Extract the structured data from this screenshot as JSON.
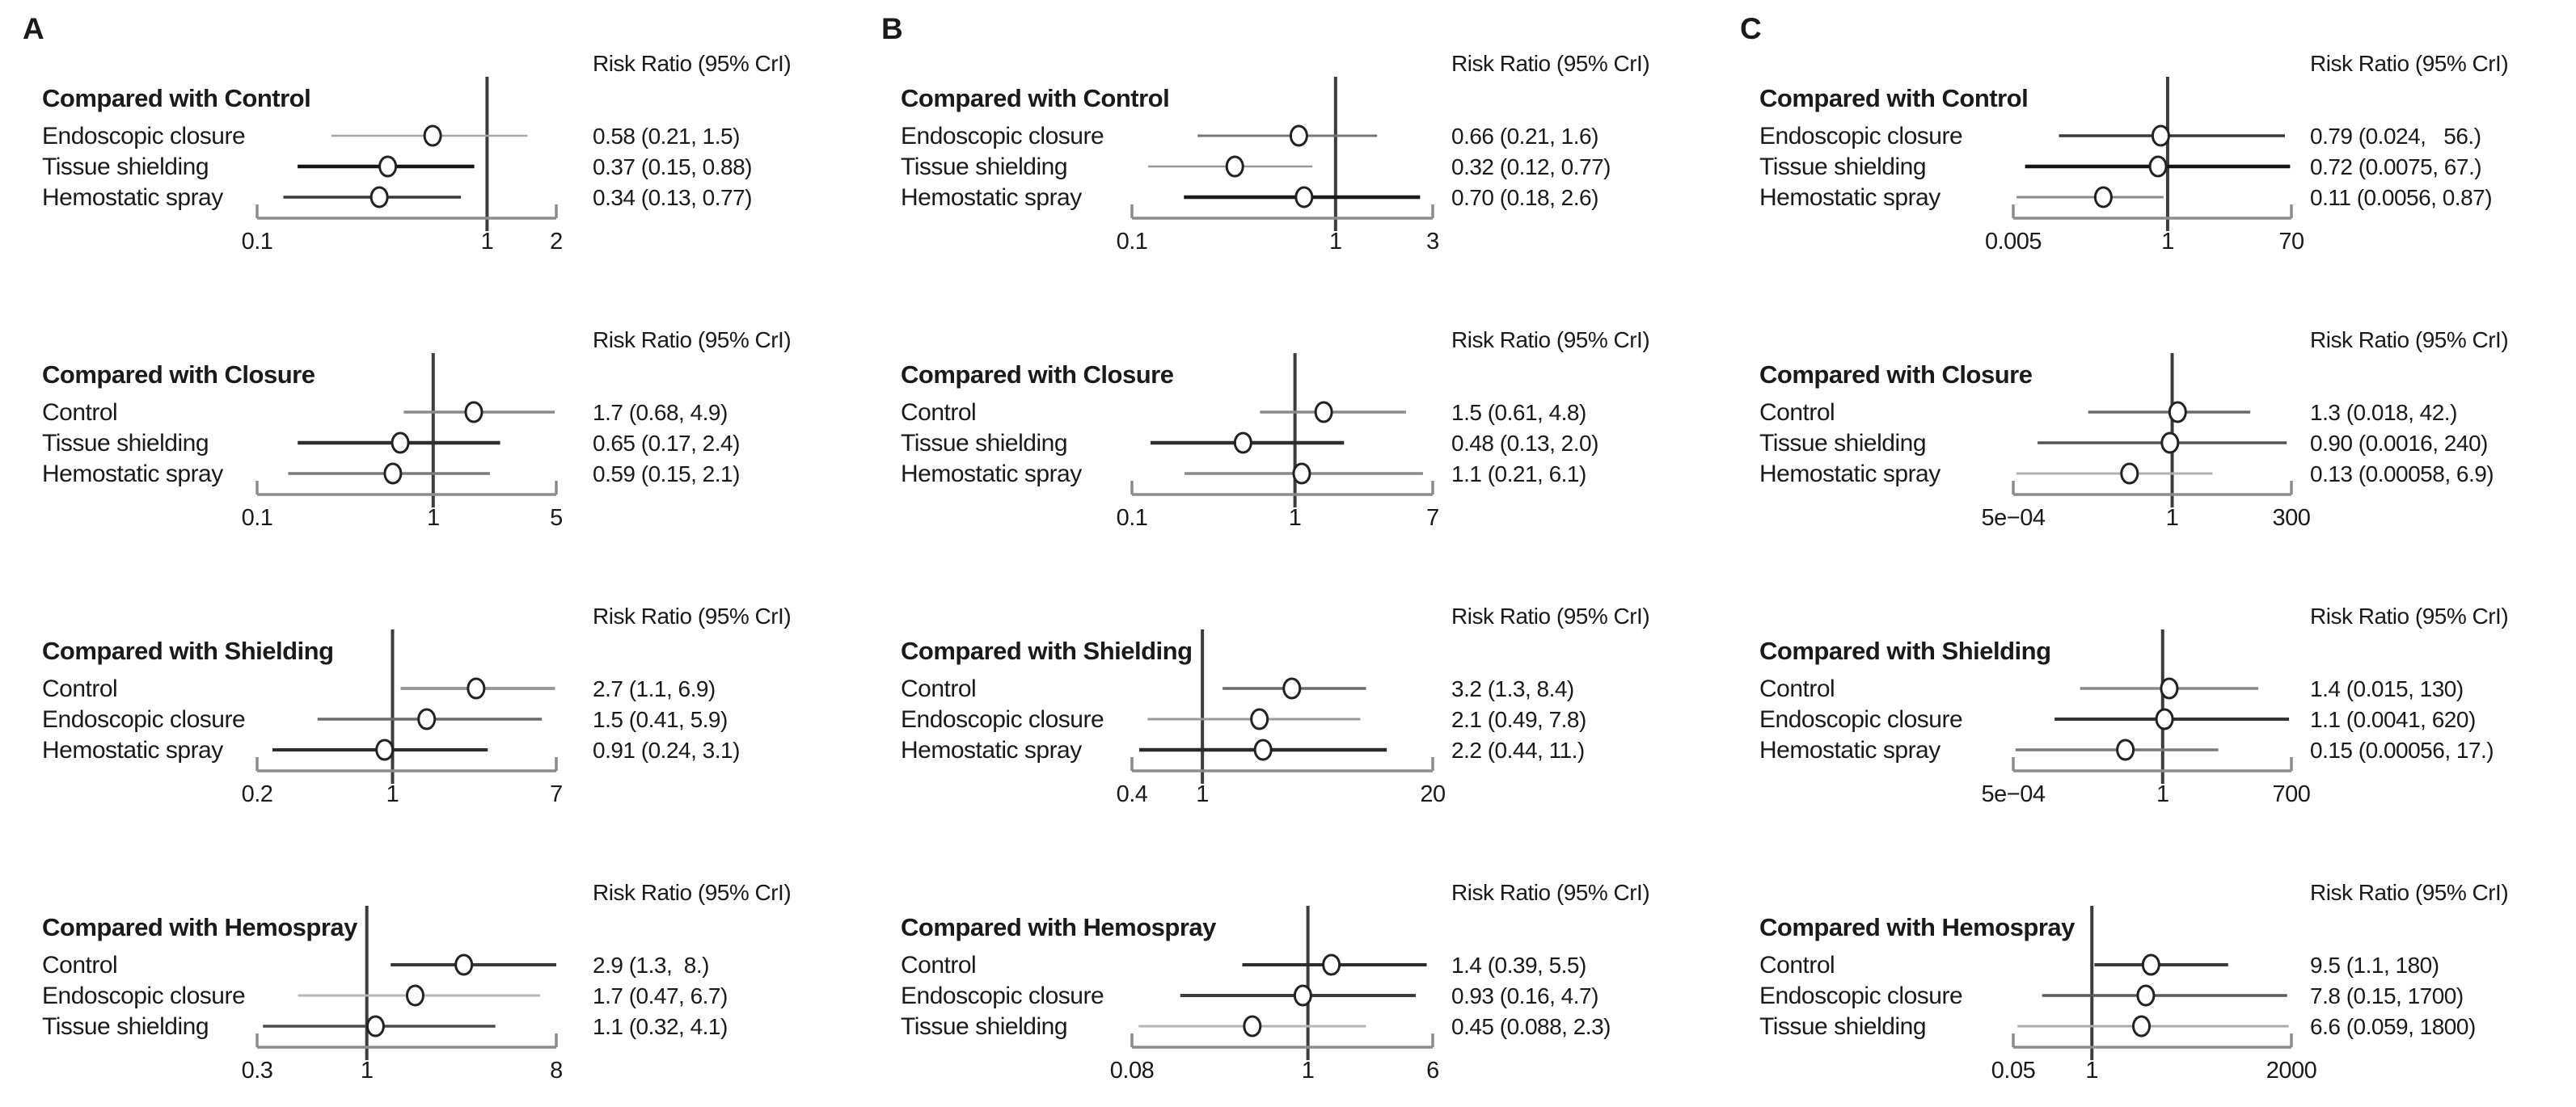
{
  "panel_order": [
    "A",
    "B",
    "C"
  ],
  "header_label": "Risk Ratio (95% CrI)",
  "colors": {
    "text": "#1a1a1a",
    "reference_line": "#3c3c3c",
    "axis": "#8c8c8c",
    "marker_fill": "#ffffff",
    "marker_stroke": "#222222"
  },
  "chart_data": [
    {
      "type": "forest",
      "panel": "A",
      "title": "Compared with Control",
      "header": "Risk Ratio (95% CrI)",
      "xscale": "log",
      "axis_ticks": [
        0.1,
        1,
        2
      ],
      "axis_tick_labels": [
        "0.1",
        "1",
        "2"
      ],
      "rows": [
        {
          "label": "Endoscopic closure",
          "rr": 0.58,
          "ci_low": 0.21,
          "ci_high": 1.5,
          "text": "0.58 (0.21, 1.5)",
          "line_color": "#a8a8a8",
          "line_width": 2.5
        },
        {
          "label": "Tissue shielding",
          "rr": 0.37,
          "ci_low": 0.15,
          "ci_high": 0.88,
          "text": "0.37 (0.15, 0.88)",
          "line_color": "#161616",
          "line_width": 4.5
        },
        {
          "label": "Hemostatic spray",
          "rr": 0.34,
          "ci_low": 0.13,
          "ci_high": 0.77,
          "text": "0.34 (0.13, 0.77)",
          "line_color": "#3a3a3a",
          "line_width": 3.5
        }
      ]
    },
    {
      "type": "forest",
      "panel": "A",
      "title": "Compared with Closure",
      "header": "Risk Ratio (95% CrI)",
      "xscale": "log",
      "axis_ticks": [
        0.1,
        1,
        5
      ],
      "axis_tick_labels": [
        "0.1",
        "1",
        "5"
      ],
      "rows": [
        {
          "label": "Control",
          "rr": 1.7,
          "ci_low": 0.68,
          "ci_high": 4.9,
          "text": "1.7 (0.68, 4.9)",
          "line_color": "#8a8a8a",
          "line_width": 3.5
        },
        {
          "label": "Tissue shielding",
          "rr": 0.65,
          "ci_low": 0.17,
          "ci_high": 2.4,
          "text": "0.65 (0.17, 2.4)",
          "line_color": "#2e2e2e",
          "line_width": 4.5
        },
        {
          "label": "Hemostatic spray",
          "rr": 0.59,
          "ci_low": 0.15,
          "ci_high": 2.1,
          "text": "0.59 (0.15, 2.1)",
          "line_color": "#7a7a7a",
          "line_width": 3.5
        }
      ]
    },
    {
      "type": "forest",
      "panel": "A",
      "title": "Compared with Shielding",
      "header": "Risk Ratio (95% CrI)",
      "xscale": "log",
      "axis_ticks": [
        0.2,
        1,
        7
      ],
      "axis_tick_labels": [
        "0.2",
        "1",
        "7"
      ],
      "rows": [
        {
          "label": "Control",
          "rr": 2.7,
          "ci_low": 1.1,
          "ci_high": 6.9,
          "text": "2.7 (1.1, 6.9)",
          "line_color": "#9a9a9a",
          "line_width": 4
        },
        {
          "label": "Endoscopic closure",
          "rr": 1.5,
          "ci_low": 0.41,
          "ci_high": 5.9,
          "text": "1.5 (0.41, 5.9)",
          "line_color": "#6a6a6a",
          "line_width": 3.5
        },
        {
          "label": "Hemostatic spray",
          "rr": 0.91,
          "ci_low": 0.24,
          "ci_high": 3.1,
          "text": "0.91 (0.24, 3.1)",
          "line_color": "#2e2e2e",
          "line_width": 4
        }
      ]
    },
    {
      "type": "forest",
      "panel": "A",
      "title": "Compared with Hemospray",
      "header": "Risk Ratio (95% CrI)",
      "xscale": "log",
      "axis_ticks": [
        0.3,
        1,
        8
      ],
      "axis_tick_labels": [
        "0.3",
        "1",
        "8"
      ],
      "rows": [
        {
          "label": "Control",
          "rr": 2.9,
          "ci_low": 1.3,
          "ci_high": 8.0,
          "text": "2.9 (1.3,  8.)",
          "line_color": "#3a3a3a",
          "line_width": 4
        },
        {
          "label": "Endoscopic closure",
          "rr": 1.7,
          "ci_low": 0.47,
          "ci_high": 6.7,
          "text": "1.7 (0.47, 6.7)",
          "line_color": "#b5b5b5",
          "line_width": 3
        },
        {
          "label": "Tissue shielding",
          "rr": 1.1,
          "ci_low": 0.32,
          "ci_high": 4.1,
          "text": "1.1 (0.32, 4.1)",
          "line_color": "#4a4a4a",
          "line_width": 3.5
        }
      ]
    },
    {
      "type": "forest",
      "panel": "B",
      "title": "Compared with Control",
      "header": "Risk Ratio (95% CrI)",
      "xscale": "log",
      "axis_ticks": [
        0.1,
        1,
        3
      ],
      "axis_tick_labels": [
        "0.1",
        "1",
        "3"
      ],
      "rows": [
        {
          "label": "Endoscopic closure",
          "rr": 0.66,
          "ci_low": 0.21,
          "ci_high": 1.6,
          "text": "0.66 (0.21, 1.6)",
          "line_color": "#777777",
          "line_width": 3
        },
        {
          "label": "Tissue shielding",
          "rr": 0.32,
          "ci_low": 0.12,
          "ci_high": 0.77,
          "text": "0.32 (0.12, 0.77)",
          "line_color": "#9a9a9a",
          "line_width": 2.5
        },
        {
          "label": "Hemostatic spray",
          "rr": 0.7,
          "ci_low": 0.18,
          "ci_high": 2.6,
          "text": "0.70 (0.18, 2.6)",
          "line_color": "#1a1a1a",
          "line_width": 4.5
        }
      ]
    },
    {
      "type": "forest",
      "panel": "B",
      "title": "Compared with Closure",
      "header": "Risk Ratio (95% CrI)",
      "xscale": "log",
      "axis_ticks": [
        0.1,
        1,
        7
      ],
      "axis_tick_labels": [
        "0.1",
        "1",
        "7"
      ],
      "rows": [
        {
          "label": "Control",
          "rr": 1.5,
          "ci_low": 0.61,
          "ci_high": 4.8,
          "text": "1.5 (0.61, 4.8)",
          "line_color": "#8a8a8a",
          "line_width": 3.5
        },
        {
          "label": "Tissue shielding",
          "rr": 0.48,
          "ci_low": 0.13,
          "ci_high": 2.0,
          "text": "0.48 (0.13, 2.0)",
          "line_color": "#2e2e2e",
          "line_width": 4.5
        },
        {
          "label": "Hemostatic spray",
          "rr": 1.1,
          "ci_low": 0.21,
          "ci_high": 6.1,
          "text": "1.1 (0.21, 6.1)",
          "line_color": "#8a8a8a",
          "line_width": 3.5
        }
      ]
    },
    {
      "type": "forest",
      "panel": "B",
      "title": "Compared with Shielding",
      "header": "Risk Ratio (95% CrI)",
      "xscale": "log",
      "axis_ticks": [
        0.4,
        1,
        20
      ],
      "axis_tick_labels": [
        "0.4",
        "1",
        "20"
      ],
      "rows": [
        {
          "label": "Control",
          "rr": 3.2,
          "ci_low": 1.3,
          "ci_high": 8.4,
          "text": "3.2 (1.3, 8.4)",
          "line_color": "#6a6a6a",
          "line_width": 3.5
        },
        {
          "label": "Endoscopic closure",
          "rr": 2.1,
          "ci_low": 0.49,
          "ci_high": 7.8,
          "text": "2.1 (0.49, 7.8)",
          "line_color": "#9a9a9a",
          "line_width": 3
        },
        {
          "label": "Hemostatic spray",
          "rr": 2.2,
          "ci_low": 0.44,
          "ci_high": 11.0,
          "text": "2.2 (0.44, 11.)",
          "line_color": "#2a2a2a",
          "line_width": 4.5
        }
      ]
    },
    {
      "type": "forest",
      "panel": "B",
      "title": "Compared with Hemospray",
      "header": "Risk Ratio (95% CrI)",
      "xscale": "log",
      "axis_ticks": [
        0.08,
        1,
        6
      ],
      "axis_tick_labels": [
        "0.08",
        "1",
        "6"
      ],
      "rows": [
        {
          "label": "Control",
          "rr": 1.4,
          "ci_low": 0.39,
          "ci_high": 5.5,
          "text": "1.4 (0.39, 5.5)",
          "line_color": "#2e2e2e",
          "line_width": 4
        },
        {
          "label": "Endoscopic closure",
          "rr": 0.93,
          "ci_low": 0.16,
          "ci_high": 4.7,
          "text": "0.93 (0.16, 4.7)",
          "line_color": "#3a3a3a",
          "line_width": 4
        },
        {
          "label": "Tissue shielding",
          "rr": 0.45,
          "ci_low": 0.088,
          "ci_high": 2.3,
          "text": "0.45 (0.088, 2.3)",
          "line_color": "#b5b5b5",
          "line_width": 3
        }
      ]
    },
    {
      "type": "forest",
      "panel": "C",
      "title": "Compared with Control",
      "header": "Risk Ratio (95% CrI)",
      "xscale": "log",
      "axis_ticks": [
        0.005,
        1,
        70
      ],
      "axis_tick_labels": [
        "0.005",
        "1",
        "70"
      ],
      "rows": [
        {
          "label": "Endoscopic closure",
          "rr": 0.79,
          "ci_low": 0.024,
          "ci_high": 56.0,
          "text": "0.79 (0.024,   56.)",
          "line_color": "#3a3a3a",
          "line_width": 3.5
        },
        {
          "label": "Tissue shielding",
          "rr": 0.72,
          "ci_low": 0.0075,
          "ci_high": 67.0,
          "text": "0.72 (0.0075, 67.)",
          "line_color": "#141414",
          "line_width": 4.5
        },
        {
          "label": "Hemostatic spray",
          "rr": 0.11,
          "ci_low": 0.0056,
          "ci_high": 0.87,
          "text": "0.11 (0.0056, 0.87)",
          "line_color": "#8a8a8a",
          "line_width": 3
        }
      ]
    },
    {
      "type": "forest",
      "panel": "C",
      "title": "Compared with Closure",
      "header": "Risk Ratio (95% CrI)",
      "xscale": "log",
      "axis_ticks": [
        0.0005,
        1,
        300
      ],
      "axis_tick_labels": [
        "5e−04",
        "1",
        "300"
      ],
      "rows": [
        {
          "label": "Control",
          "rr": 1.3,
          "ci_low": 0.018,
          "ci_high": 42.0,
          "text": "1.3 (0.018, 42.)",
          "line_color": "#6a6a6a",
          "line_width": 3.5
        },
        {
          "label": "Tissue shielding",
          "rr": 0.9,
          "ci_low": 0.0016,
          "ci_high": 240.0,
          "text": "0.90 (0.0016, 240)",
          "line_color": "#555555",
          "line_width": 3.5
        },
        {
          "label": "Hemostatic spray",
          "rr": 0.13,
          "ci_low": 0.00058,
          "ci_high": 6.9,
          "text": "0.13 (0.00058, 6.9)",
          "line_color": "#b0b0b0",
          "line_width": 3
        }
      ]
    },
    {
      "type": "forest",
      "panel": "C",
      "title": "Compared with Shielding",
      "header": "Risk Ratio (95% CrI)",
      "xscale": "log",
      "axis_ticks": [
        0.0005,
        1,
        700
      ],
      "axis_tick_labels": [
        "5e−04",
        "1",
        "700"
      ],
      "rows": [
        {
          "label": "Control",
          "rr": 1.4,
          "ci_low": 0.015,
          "ci_high": 130.0,
          "text": "1.4 (0.015, 130)",
          "line_color": "#8a8a8a",
          "line_width": 3.5
        },
        {
          "label": "Endoscopic closure",
          "rr": 1.1,
          "ci_low": 0.0041,
          "ci_high": 620.0,
          "text": "1.1 (0.0041, 620)",
          "line_color": "#333333",
          "line_width": 4
        },
        {
          "label": "Hemostatic spray",
          "rr": 0.15,
          "ci_low": 0.00056,
          "ci_high": 17.0,
          "text": "0.15 (0.00056, 17.)",
          "line_color": "#7a7a7a",
          "line_width": 3.5
        }
      ]
    },
    {
      "type": "forest",
      "panel": "C",
      "title": "Compared with Hemospray",
      "header": "Risk Ratio (95% CrI)",
      "xscale": "log",
      "axis_ticks": [
        0.05,
        1,
        2000
      ],
      "axis_tick_labels": [
        "0.05",
        "1",
        "2000"
      ],
      "rows": [
        {
          "label": "Control",
          "rr": 9.5,
          "ci_low": 1.1,
          "ci_high": 180.0,
          "text": "9.5 (1.1, 180)",
          "line_color": "#3a3a3a",
          "line_width": 4
        },
        {
          "label": "Endoscopic closure",
          "rr": 7.8,
          "ci_low": 0.15,
          "ci_high": 1700.0,
          "text": "7.8 (0.15, 1700)",
          "line_color": "#5a5a5a",
          "line_width": 3.5
        },
        {
          "label": "Tissue shielding",
          "rr": 6.6,
          "ci_low": 0.059,
          "ci_high": 1800.0,
          "text": "6.6 (0.059, 1800)",
          "line_color": "#ababab",
          "line_width": 3
        }
      ]
    }
  ]
}
